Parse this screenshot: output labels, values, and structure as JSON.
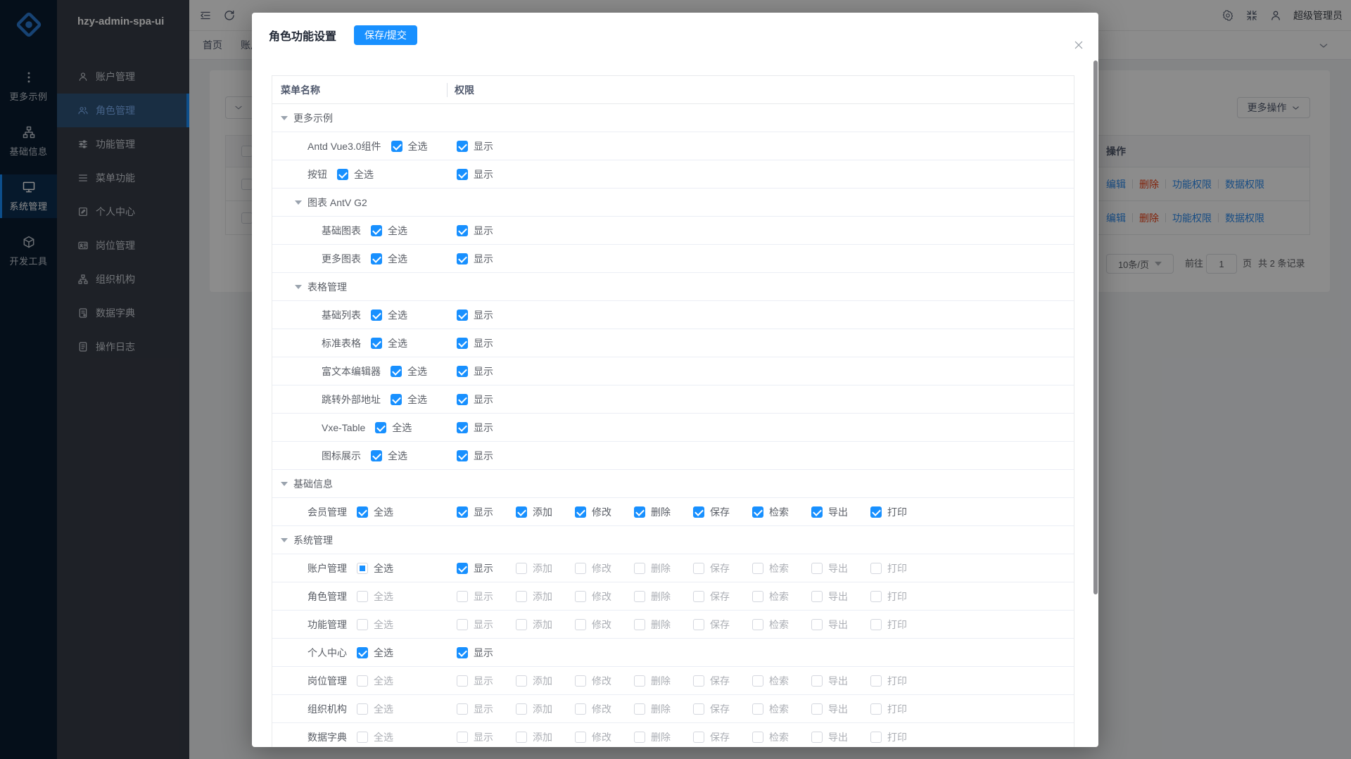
{
  "app": {
    "title": "hzy-admin-spa-ui"
  },
  "rail": {
    "items": [
      {
        "key": "more-examples",
        "label": "更多示例",
        "icon": "dots",
        "active": false
      },
      {
        "key": "base-info",
        "label": "基础信息",
        "icon": "org",
        "active": false
      },
      {
        "key": "system-manage",
        "label": "系统管理",
        "icon": "monitor",
        "active": true
      },
      {
        "key": "dev-tools",
        "label": "开发工具",
        "icon": "cube",
        "active": false
      }
    ]
  },
  "sidebar": {
    "items": [
      {
        "key": "account",
        "label": "账户管理",
        "icon": "user",
        "active": false
      },
      {
        "key": "role",
        "label": "角色管理",
        "icon": "team",
        "active": true
      },
      {
        "key": "function",
        "label": "功能管理",
        "icon": "sliders",
        "active": false
      },
      {
        "key": "menu-func",
        "label": "菜单功能",
        "icon": "lines",
        "active": false
      },
      {
        "key": "personal",
        "label": "个人中心",
        "icon": "edit",
        "active": false
      },
      {
        "key": "post",
        "label": "岗位管理",
        "icon": "idcard",
        "active": false
      },
      {
        "key": "orgs",
        "label": "组织机构",
        "icon": "org",
        "active": false
      },
      {
        "key": "dict",
        "label": "数据字典",
        "icon": "dict",
        "active": false
      },
      {
        "key": "oplog",
        "label": "操作日志",
        "icon": "log",
        "active": false
      }
    ]
  },
  "header": {
    "username": "超级管理员"
  },
  "tabs": {
    "items": [
      {
        "label": "首页",
        "clipped": false
      },
      {
        "label": "账户管理",
        "clipped": true
      }
    ]
  },
  "page": {
    "more_actions_label": "更多操作",
    "table": {
      "operation_header": "操作",
      "rows": [
        {
          "actions": [
            {
              "label": "编辑",
              "type": "link"
            },
            {
              "label": "删除",
              "type": "danger"
            },
            {
              "label": "功能权限",
              "type": "link"
            },
            {
              "label": "数据权限",
              "type": "link"
            }
          ]
        },
        {
          "actions": [
            {
              "label": "编辑",
              "type": "link"
            },
            {
              "label": "删除",
              "type": "danger"
            },
            {
              "label": "功能权限",
              "type": "link"
            },
            {
              "label": "数据权限",
              "type": "link"
            }
          ]
        }
      ]
    },
    "pagination": {
      "page_size": "10条/页",
      "goto_label": "前往",
      "page_value": "1",
      "page_unit": "页",
      "total_label": "共 2 条记录"
    }
  },
  "modal": {
    "title": "角色功能设置",
    "save_label": "保存/提交",
    "columns": [
      "菜单名称",
      "权限"
    ],
    "select_all_label": "全选",
    "perm_labels": [
      "显示",
      "添加",
      "修改",
      "删除",
      "保存",
      "检索",
      "导出",
      "打印"
    ],
    "rows": [
      {
        "label": "更多示例",
        "level": 1,
        "group": true
      },
      {
        "label": "Antd Vue3.0组件",
        "level": 2,
        "select_all": "checked",
        "perms": [
          "checked"
        ]
      },
      {
        "label": "按钮",
        "level": 2,
        "select_all": "checked",
        "perms": [
          "checked"
        ]
      },
      {
        "label": "图表 AntV G2",
        "level": 2,
        "group": true
      },
      {
        "label": "基础图表",
        "level": 3,
        "select_all": "checked",
        "perms": [
          "checked"
        ]
      },
      {
        "label": "更多图表",
        "level": 3,
        "select_all": "checked",
        "perms": [
          "checked"
        ]
      },
      {
        "label": "表格管理",
        "level": 2,
        "group": true
      },
      {
        "label": "基础列表",
        "level": 3,
        "select_all": "checked",
        "perms": [
          "checked"
        ]
      },
      {
        "label": "标准表格",
        "level": 3,
        "select_all": "checked",
        "perms": [
          "checked"
        ]
      },
      {
        "label": "富文本编辑器",
        "level": 3,
        "select_all": "checked",
        "perms": [
          "checked"
        ]
      },
      {
        "label": "跳转外部地址",
        "level": 3,
        "select_all": "checked",
        "perms": [
          "checked"
        ]
      },
      {
        "label": "Vxe-Table",
        "level": 3,
        "select_all": "checked",
        "perms": [
          "checked"
        ]
      },
      {
        "label": "图标展示",
        "level": 3,
        "select_all": "checked",
        "perms": [
          "checked"
        ]
      },
      {
        "label": "基础信息",
        "level": 1,
        "group": true
      },
      {
        "label": "会员管理",
        "level": 2,
        "select_all": "checked",
        "perms": [
          "checked",
          "checked",
          "checked",
          "checked",
          "checked",
          "checked",
          "checked",
          "checked"
        ]
      },
      {
        "label": "系统管理",
        "level": 1,
        "group": true
      },
      {
        "label": "账户管理",
        "level": 2,
        "select_all": "indeterminate",
        "perms": [
          "checked",
          "unchecked",
          "unchecked",
          "unchecked",
          "unchecked",
          "unchecked",
          "unchecked",
          "unchecked"
        ]
      },
      {
        "label": "角色管理",
        "level": 2,
        "select_all": "unchecked",
        "perms": [
          "unchecked",
          "unchecked",
          "unchecked",
          "unchecked",
          "unchecked",
          "unchecked",
          "unchecked",
          "unchecked"
        ]
      },
      {
        "label": "功能管理",
        "level": 2,
        "select_all": "unchecked",
        "perms": [
          "unchecked",
          "unchecked",
          "unchecked",
          "unchecked",
          "unchecked",
          "unchecked",
          "unchecked",
          "unchecked"
        ]
      },
      {
        "label": "个人中心",
        "level": 2,
        "select_all": "checked",
        "perms": [
          "checked"
        ]
      },
      {
        "label": "岗位管理",
        "level": 2,
        "select_all": "unchecked",
        "perms": [
          "unchecked",
          "unchecked",
          "unchecked",
          "unchecked",
          "unchecked",
          "unchecked",
          "unchecked",
          "unchecked"
        ]
      },
      {
        "label": "组织机构",
        "level": 2,
        "select_all": "unchecked",
        "perms": [
          "unchecked",
          "unchecked",
          "unchecked",
          "unchecked",
          "unchecked",
          "unchecked",
          "unchecked",
          "unchecked"
        ]
      },
      {
        "label": "数据字典",
        "level": 2,
        "select_all": "unchecked",
        "perms": [
          "unchecked",
          "unchecked",
          "unchecked",
          "unchecked",
          "unchecked",
          "unchecked",
          "unchecked",
          "unchecked"
        ]
      }
    ]
  },
  "colors": {
    "primary": "#1890ff",
    "link": "#2d8cf0",
    "danger": "#ed4014"
  }
}
